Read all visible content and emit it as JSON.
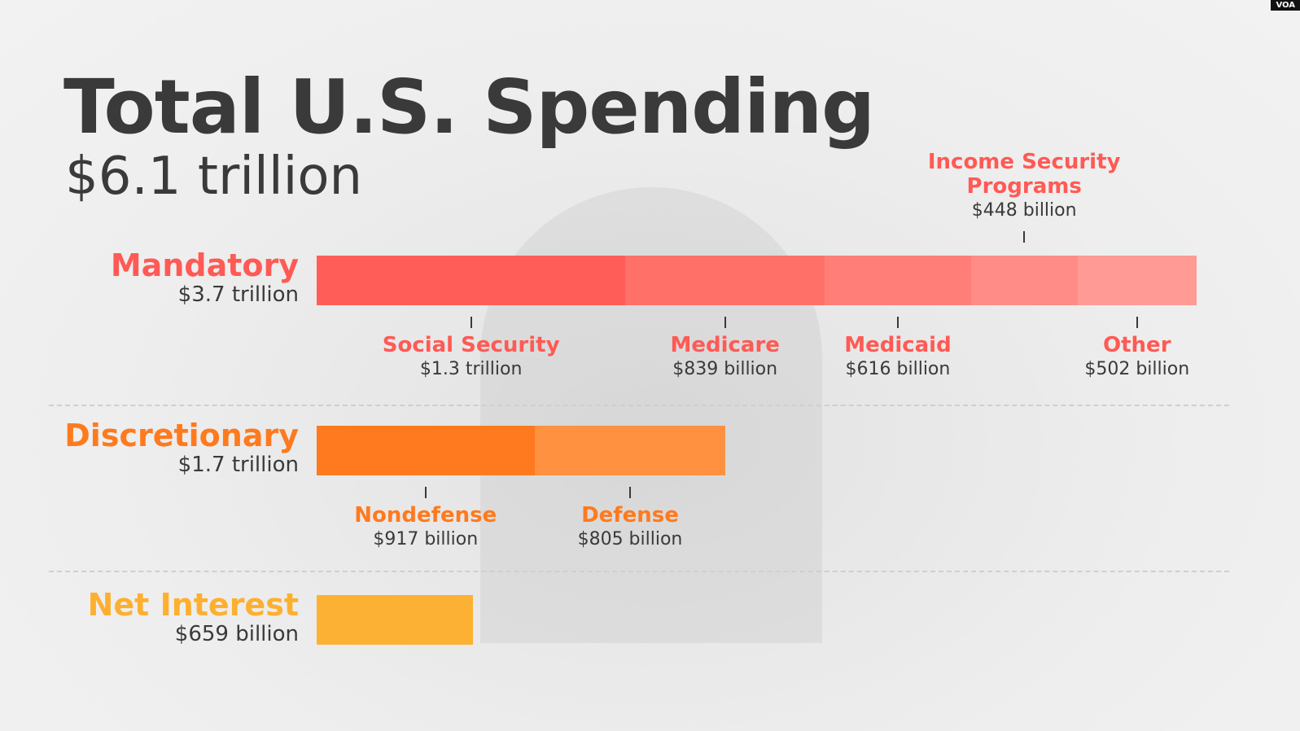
{
  "badge": "VOA",
  "chart_data": {
    "type": "bar",
    "title": "Total U.S. Spending",
    "subtitle": "$6.1 trillion",
    "unit": "billion USD",
    "groups": [
      {
        "name": "Mandatory",
        "total_label": "$3.7 trillion",
        "color": "#ff5a55",
        "segments": [
          {
            "name": "Social Security",
            "value": 1300,
            "label": "$1.3 trillion",
            "color": "#ff5e58",
            "label_pos": "below"
          },
          {
            "name": "Medicare",
            "value": 839,
            "label": "$839 billion",
            "color": "#ff7168",
            "label_pos": "below"
          },
          {
            "name": "Medicaid",
            "value": 616,
            "label": "$616 billion",
            "color": "#ff7f78",
            "label_pos": "below"
          },
          {
            "name": "Income Security Programs",
            "value": 448,
            "label": "$448 billion",
            "color": "#ff8c86",
            "label_pos": "above"
          },
          {
            "name": "Other",
            "value": 502,
            "label": "$502 billion",
            "color": "#ff9a95",
            "label_pos": "below"
          }
        ]
      },
      {
        "name": "Discretionary",
        "total_label": "$1.7 trillion",
        "color": "#ff7a1e",
        "segments": [
          {
            "name": "Nondefense",
            "value": 917,
            "label": "$917 billion",
            "color": "#ff7a1e",
            "label_pos": "below"
          },
          {
            "name": "Defense",
            "value": 805,
            "label": "$805 billion",
            "color": "#ff9140",
            "label_pos": "below"
          }
        ]
      },
      {
        "name": "Net Interest",
        "total_label": "$659 billion",
        "color": "#fdb030",
        "segments": [
          {
            "name": "Net Interest",
            "value": 659,
            "label": "",
            "color": "#fdb134",
            "label_pos": "none"
          }
        ]
      }
    ]
  }
}
